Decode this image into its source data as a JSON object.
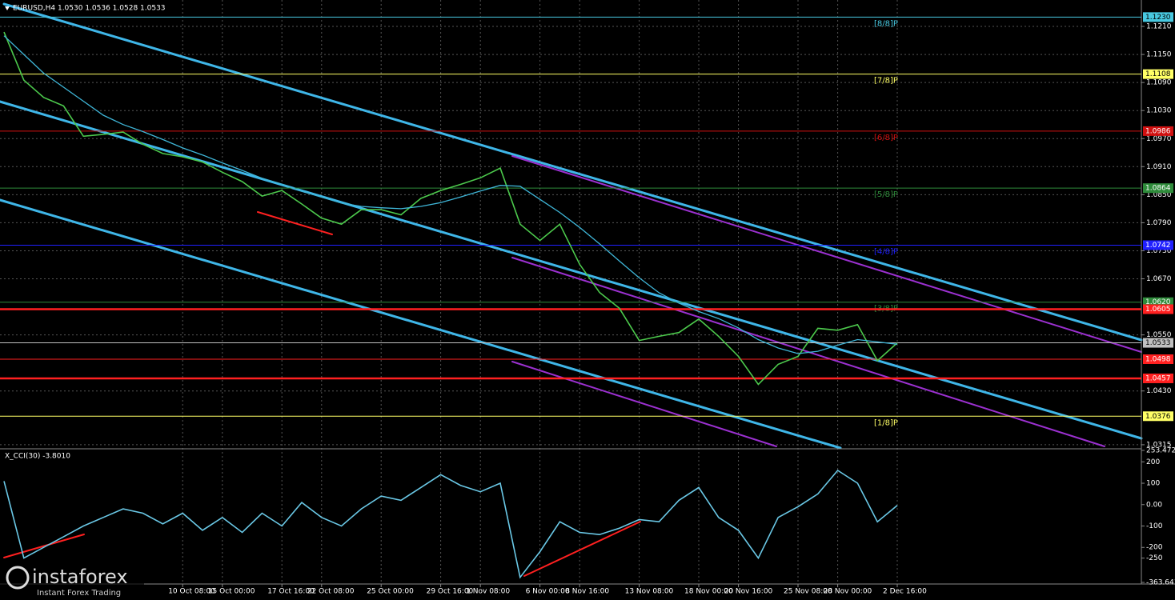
{
  "logo": {
    "name": "instaforex",
    "tagline": "Instant Forex Trading"
  },
  "chart_data": [
    {
      "type": "line",
      "title": "EURUSD,H4  1.0530 1.0536 1.0528 1.0533",
      "categories": [
        null,
        null,
        null,
        null,
        null,
        null,
        null,
        null,
        null,
        "10 Oct 08:00",
        null,
        "15 Oct 00:00",
        null,
        null,
        "17 Oct 16:00",
        null,
        "22 Oct 08:00",
        null,
        null,
        "25 Oct 00:00",
        null,
        null,
        "29 Oct 16:00",
        null,
        "1 Nov 08:00",
        null,
        null,
        "6 Nov 00:00",
        null,
        "8 Nov 16:00",
        null,
        null,
        "13 Nov 08:00",
        null,
        null,
        "18 Nov 00:00",
        null,
        "20 Nov 16:00",
        null,
        null,
        "25 Nov 08:00",
        null,
        "28 Nov 00:00",
        null,
        null,
        "2 Dec 16:00"
      ],
      "series": [
        {
          "color": "#4cc94c",
          "values": [
            1.1198,
            1.1095,
            1.1058,
            1.104,
            1.0975,
            1.0979,
            1.0984,
            1.0958,
            1.0938,
            1.0931,
            1.092,
            1.0898,
            1.0878,
            1.0847,
            1.0859,
            1.083,
            1.08,
            1.0787,
            1.0818,
            1.0818,
            1.0807,
            1.0842,
            1.0859,
            1.0872,
            1.0886,
            1.0907,
            1.0787,
            1.0752,
            1.0787,
            1.0701,
            1.0641,
            1.0607,
            1.0538,
            1.0547,
            1.0555,
            1.0584,
            1.0547,
            1.0504,
            1.0444,
            1.0487,
            1.0504,
            1.0564,
            1.056,
            1.0572,
            1.0495,
            1.0533
          ]
        },
        {
          "color": "#3fb6d8",
          "values": [
            1.119,
            1.115,
            1.111,
            1.108,
            1.105,
            1.102,
            1.1,
            1.0985,
            1.0968,
            1.095,
            1.0935,
            1.0918,
            1.0902,
            1.0885,
            1.0872,
            1.0858,
            1.0845,
            1.0832,
            1.0825,
            1.0822,
            1.082,
            1.0825,
            1.0833,
            1.0845,
            1.0858,
            1.087,
            1.0868,
            1.084,
            1.0812,
            1.078,
            1.0745,
            1.0708,
            1.0672,
            1.064,
            1.0618,
            1.06,
            1.0585,
            1.0565,
            1.054,
            1.0522,
            1.051,
            1.0515,
            1.0528,
            1.054,
            1.0535,
            1.053
          ]
        }
      ],
      "ylim": [
        1.0308,
        1.1258
      ],
      "yticks": [
        {
          "value": 1.121,
          "label": "1.1210"
        },
        {
          "value": 1.115,
          "label": "1.1150"
        },
        {
          "value": 1.109,
          "label": "1.1090"
        },
        {
          "value": 1.103,
          "label": "1.1030"
        },
        {
          "value": 1.097,
          "label": "1.0970"
        },
        {
          "value": 1.091,
          "label": "1.0910"
        },
        {
          "value": 1.085,
          "label": "1.0850"
        },
        {
          "value": 1.079,
          "label": "1.0790"
        },
        {
          "value": 1.073,
          "label": "1.0730"
        },
        {
          "value": 1.067,
          "label": "1.0670"
        },
        {
          "value": 1.055,
          "label": "1.0550"
        },
        {
          "value": 1.043,
          "label": "1.0430"
        },
        {
          "value": 1.0315,
          "label": "1.0315"
        }
      ],
      "grid": true,
      "levels": [
        {
          "value": 1.123,
          "label": "1.1230",
          "color": "#48c8e0",
          "murray": "[8/8]P"
        },
        {
          "value": 1.1108,
          "label": "1.1108",
          "color": "#ffff66",
          "murray": "[7/8]P"
        },
        {
          "value": 1.0986,
          "label": "1.0986",
          "color": "#d01010",
          "murray": "[6/8]P"
        },
        {
          "value": 1.0864,
          "label": "1.0864",
          "color": "#2e8b3a",
          "murray": "[5/8]P"
        },
        {
          "value": 1.0742,
          "label": "1.0742",
          "color": "#2020ff",
          "murray": "[4/8]P"
        },
        {
          "value": 1.062,
          "label": "1.0620",
          "color": "#2e8b3a",
          "murray": "[3/8]P"
        },
        {
          "value": 1.0605,
          "label": "1.0605",
          "color": "#ff2020"
        },
        {
          "value": 1.0533,
          "label": "1.0533",
          "color": "#c0c0c0"
        },
        {
          "value": 1.0498,
          "label": "1.0498",
          "color": "#ff2020"
        },
        {
          "value": 1.0457,
          "label": "1.0457",
          "color": "#ff2020"
        },
        {
          "value": 1.0376,
          "label": "1.0376",
          "color": "#ffff66",
          "murray": "[1/8]P"
        }
      ]
    },
    {
      "type": "line",
      "title": "X_CCI(30) -3.8010",
      "series": [
        {
          "color": "#6ac8e6",
          "values": [
            110,
            -250,
            -200,
            -150,
            -100,
            -60,
            -20,
            -40,
            -90,
            -40,
            -120,
            -60,
            -130,
            -40,
            -100,
            10,
            -60,
            -100,
            -20,
            40,
            20,
            80,
            140,
            90,
            60,
            100,
            -340,
            -220,
            -80,
            -130,
            -140,
            -110,
            -70,
            -80,
            20,
            80,
            -60,
            -120,
            -250,
            -60,
            -10,
            50,
            160,
            100,
            -80,
            -4
          ]
        }
      ],
      "ylim": [
        -363.641,
        253.4725
      ],
      "yticks": [
        253.4725,
        200,
        100,
        {
          "value": 0,
          "label": "0.00"
        },
        -100,
        -200,
        -250,
        -363.641
      ]
    }
  ]
}
